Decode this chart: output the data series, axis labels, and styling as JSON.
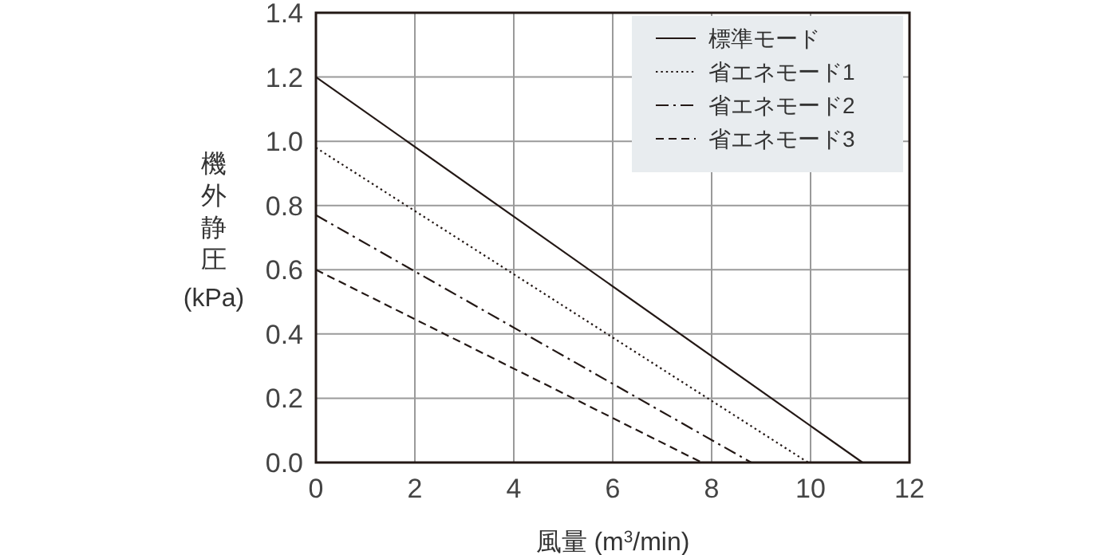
{
  "chart_data": {
    "type": "line",
    "xlabel": "風量 (m$^{3}$/min)",
    "ylabel": "機外静圧 (kPa)",
    "xlim": [
      0,
      12
    ],
    "xticks": [
      0,
      2,
      4,
      6,
      8,
      10,
      12
    ],
    "ylim": [
      0,
      1.4
    ],
    "yticks": [
      {
        "value": 0,
        "label": "0.0"
      },
      {
        "value": 0.2,
        "label": "0.2"
      },
      {
        "value": 0.4,
        "label": "0.4"
      },
      {
        "value": 0.6,
        "label": "0.6"
      },
      {
        "value": 0.8,
        "label": "0.8"
      },
      {
        "value": 1,
        "label": "1.0"
      },
      {
        "value": 1.2,
        "label": "1.2"
      },
      {
        "value": 1.4,
        "label": "1.4"
      }
    ],
    "grid": true,
    "legend": "top right",
    "marker": "none",
    "series": [
      {
        "name": "標準モード",
        "color": "#231815",
        "x": [
          0,
          11.05
        ],
        "values": [
          1.2,
          0
        ],
        "line_style": "solid"
      },
      {
        "name": "省エネモード1",
        "color": "#231815",
        "x": [
          0,
          9.95
        ],
        "values": [
          0.98,
          0
        ],
        "line_style": "dotted"
      },
      {
        "name": "省エネモード2",
        "color": "#231815",
        "x": [
          0,
          8.8
        ],
        "values": [
          0.77,
          0
        ],
        "line_style": "dashdot"
      },
      {
        "name": "省エネモード3",
        "color": "#231815",
        "x": [
          0,
          7.8
        ],
        "values": [
          0.6,
          0
        ],
        "line_style": "dashed"
      }
    ]
  }
}
